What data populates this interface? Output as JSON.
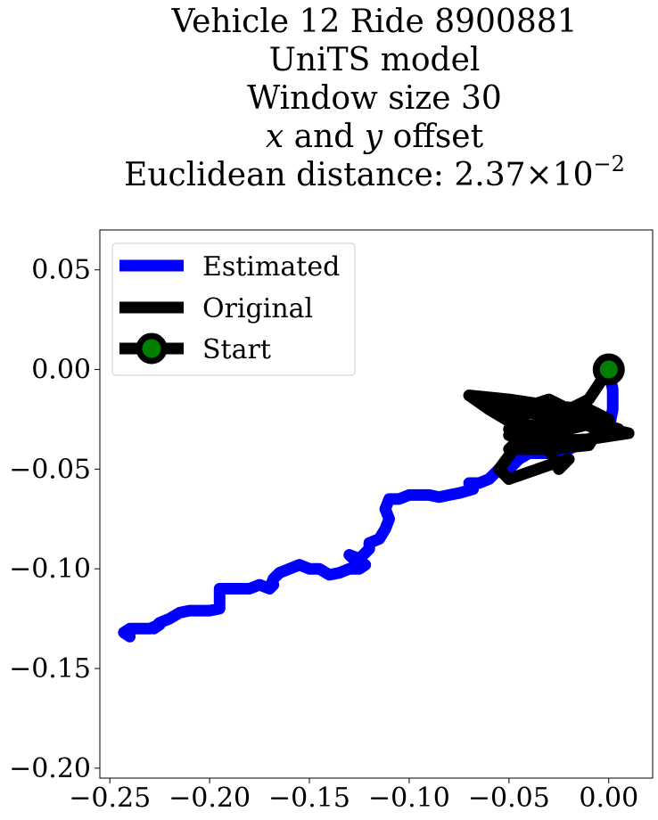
{
  "chart_data": {
    "type": "line",
    "title_lines": [
      "Vehicle 12 Ride 8900881",
      "UniTS model",
      "Window size 30"
    ],
    "title_offset_line": {
      "x_sym": "x",
      "and": " and ",
      "y_sym": "y",
      "rest": " offset"
    },
    "title_distance_line": {
      "prefix": "Euclidean distance: ",
      "mantissa": "2.37",
      "times": "×",
      "base": "10",
      "exponent": "−2"
    },
    "xlim": [
      -0.255,
      0.022
    ],
    "ylim": [
      -0.205,
      0.07
    ],
    "x_ticks": [
      -0.25,
      -0.2,
      -0.15,
      -0.1,
      -0.05,
      0.0
    ],
    "x_tick_labels": [
      "−0.25",
      "−0.20",
      "−0.15",
      "−0.10",
      "−0.05",
      "0.00"
    ],
    "y_ticks": [
      0.05,
      0.0,
      -0.05,
      -0.1,
      -0.15,
      -0.2
    ],
    "y_tick_labels": [
      "0.05",
      "0.00",
      "−0.05",
      "−0.10",
      "−0.15",
      "−0.20"
    ],
    "grid": false,
    "legend_position": "upper-left",
    "legend": [
      {
        "label": "Estimated",
        "key": "estimated"
      },
      {
        "label": "Original",
        "key": "original"
      },
      {
        "label": "Start",
        "key": "start"
      }
    ],
    "colors": {
      "estimated": "#0000ff",
      "original": "#000000",
      "start_fill": "#008000",
      "start_edge": "#000000"
    },
    "start_point": {
      "x": 0.0,
      "y": 0.0
    },
    "series": [
      {
        "name": "Estimated",
        "color": "#0000ff",
        "x": [
          0.0,
          0.002,
          0.002,
          0.0,
          -0.01,
          -0.02,
          -0.03,
          -0.04,
          -0.045,
          -0.05,
          -0.055,
          -0.06,
          -0.065,
          -0.07,
          -0.068,
          -0.075,
          -0.08,
          -0.085,
          -0.09,
          -0.095,
          -0.1,
          -0.105,
          -0.11,
          -0.112,
          -0.11,
          -0.112,
          -0.115,
          -0.12,
          -0.12,
          -0.125,
          -0.13,
          -0.128,
          -0.125,
          -0.122,
          -0.125,
          -0.13,
          -0.135,
          -0.14,
          -0.145,
          -0.15,
          -0.155,
          -0.16,
          -0.165,
          -0.168,
          -0.17,
          -0.168,
          -0.17,
          -0.175,
          -0.18,
          -0.185,
          -0.19,
          -0.195,
          -0.195,
          -0.2,
          -0.205,
          -0.21,
          -0.215,
          -0.22,
          -0.225,
          -0.228,
          -0.225,
          -0.23,
          -0.235,
          -0.24,
          -0.243,
          -0.24
        ],
        "y": [
          0.0,
          -0.01,
          -0.02,
          -0.03,
          -0.035,
          -0.04,
          -0.042,
          -0.042,
          -0.045,
          -0.05,
          -0.05,
          -0.055,
          -0.057,
          -0.057,
          -0.06,
          -0.062,
          -0.063,
          -0.064,
          -0.063,
          -0.063,
          -0.063,
          -0.065,
          -0.065,
          -0.07,
          -0.075,
          -0.08,
          -0.085,
          -0.087,
          -0.09,
          -0.095,
          -0.093,
          -0.095,
          -0.1,
          -0.098,
          -0.1,
          -0.1,
          -0.102,
          -0.103,
          -0.1,
          -0.1,
          -0.098,
          -0.1,
          -0.102,
          -0.105,
          -0.11,
          -0.108,
          -0.11,
          -0.108,
          -0.11,
          -0.11,
          -0.11,
          -0.11,
          -0.12,
          -0.121,
          -0.121,
          -0.121,
          -0.122,
          -0.125,
          -0.127,
          -0.13,
          -0.128,
          -0.13,
          -0.13,
          -0.13,
          -0.132,
          -0.134
        ]
      },
      {
        "name": "Original",
        "color": "#000000",
        "x": [
          0.0,
          -0.01,
          -0.02,
          -0.04,
          -0.06,
          -0.07,
          -0.05,
          -0.03,
          -0.01,
          0.0,
          -0.02,
          -0.04,
          -0.05,
          -0.06,
          -0.04,
          -0.02,
          0.01,
          -0.01,
          -0.03,
          -0.045,
          -0.05,
          -0.03,
          -0.01,
          -0.005,
          -0.02,
          -0.04,
          -0.055,
          -0.05,
          -0.03,
          -0.02,
          -0.025,
          -0.03,
          -0.04,
          -0.06,
          -0.07,
          -0.05,
          -0.03,
          -0.01,
          0.005,
          -0.01,
          -0.03,
          -0.05,
          -0.045,
          -0.03,
          -0.02,
          -0.035,
          -0.05,
          -0.04,
          -0.02,
          -0.01
        ],
        "y": [
          0.0,
          -0.015,
          -0.02,
          -0.02,
          -0.015,
          -0.013,
          -0.015,
          -0.018,
          -0.02,
          -0.025,
          -0.03,
          -0.028,
          -0.025,
          -0.02,
          -0.022,
          -0.025,
          -0.032,
          -0.035,
          -0.036,
          -0.035,
          -0.04,
          -0.04,
          -0.038,
          -0.03,
          -0.025,
          -0.03,
          -0.05,
          -0.055,
          -0.048,
          -0.045,
          -0.05,
          -0.04,
          -0.032,
          -0.02,
          -0.013,
          -0.015,
          -0.02,
          -0.025,
          -0.03,
          -0.035,
          -0.038,
          -0.03,
          -0.02,
          -0.015,
          -0.02,
          -0.028,
          -0.033,
          -0.036,
          -0.03,
          -0.02
        ]
      }
    ]
  }
}
